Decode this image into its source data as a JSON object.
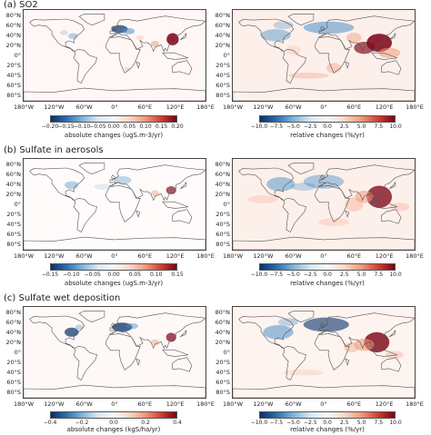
{
  "panels": [
    {
      "id": "a",
      "title": "(a) SO2",
      "abs_colorbar": {
        "label": "absolute changes (ugS.m-3/yr)",
        "ticks": [
          "−0.20",
          "−0.15",
          "−0.10",
          "−0.05",
          "0.00",
          "0.05",
          "0.10",
          "0.15",
          "0.20"
        ]
      },
      "rel_colorbar": {
        "label": "relative changes (%/yr)",
        "ticks": [
          "−10.0",
          "−7.5",
          "−5.0",
          "−2.5",
          "0.0",
          "2.5",
          "5.0",
          "7.5",
          "10.0"
        ]
      }
    },
    {
      "id": "b",
      "title": "(b) Sulfate in aerosols",
      "abs_colorbar": {
        "label": "absolute changes (ugS.m-3/yr)",
        "ticks": [
          "−0.15",
          "−0.10",
          "−0.05",
          "0.00",
          "0.05",
          "0.10",
          "0.15"
        ]
      },
      "rel_colorbar": {
        "label": "relative changes (%/yr)",
        "ticks": [
          "−10.0",
          "−7.5",
          "−5.0",
          "−2.5",
          "0.0",
          "2.5",
          "5.0",
          "7.5",
          "10.0"
        ]
      }
    },
    {
      "id": "c",
      "title": "(c) Sulfate wet deposition",
      "abs_colorbar": {
        "label": "absolute changes (kgS/ha/yr)",
        "ticks": [
          "−0.4",
          "−0.2",
          "0.0",
          "0.2",
          "0.4"
        ]
      },
      "rel_colorbar": {
        "label": "relative changes (%/yr)",
        "ticks": [
          "−10.0",
          "−7.5",
          "−5.0",
          "−2.5",
          "0.0",
          "2.5",
          "5.0",
          "7.5",
          "10.0"
        ]
      }
    }
  ],
  "lat_labels": [
    "80°N",
    "60°N",
    "40°N",
    "20°N",
    "0°",
    "20°S",
    "40°S",
    "60°S",
    "80°S"
  ],
  "lon_labels": [
    "180°W",
    "120°W",
    "60°W",
    "0°",
    "60°E",
    "120°E",
    "180°E"
  ],
  "colors": {
    "negative_strong": "#08306b",
    "negative": "#4a90c8",
    "neutral": "#f7f7f7",
    "positive": "#f29a7c",
    "positive_strong": "#7a0013",
    "coastline": "#555555"
  }
}
